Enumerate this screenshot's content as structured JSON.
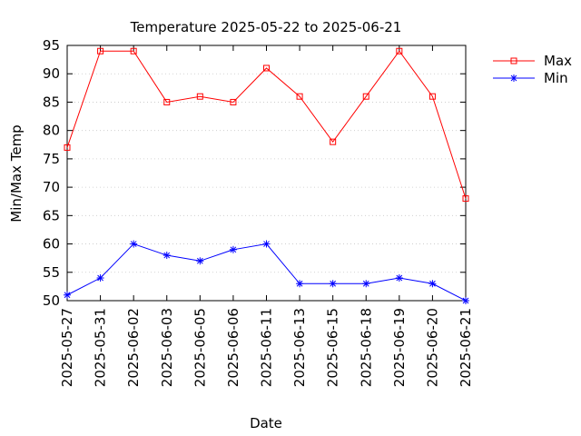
{
  "chart_data": {
    "type": "line",
    "title": "Temperature 2025-05-22 to 2025-06-21",
    "xlabel": "Date",
    "ylabel": "Min/Max Temp",
    "categories": [
      "2025-05-27",
      "2025-05-31",
      "2025-06-02",
      "2025-06-03",
      "2025-06-05",
      "2025-06-06",
      "2025-06-11",
      "2025-06-13",
      "2025-06-15",
      "2025-06-18",
      "2025-06-19",
      "2025-06-20",
      "2025-06-21"
    ],
    "ylim": [
      50,
      95
    ],
    "yticks": [
      50,
      55,
      60,
      65,
      70,
      75,
      80,
      85,
      90,
      95
    ],
    "grid": true,
    "legend": "top-right outside",
    "series": [
      {
        "name": "Max",
        "color": "#ff0000",
        "marker": "square",
        "values": [
          77,
          94,
          94,
          85,
          86,
          85,
          91,
          86,
          78,
          86,
          94,
          86,
          68
        ]
      },
      {
        "name": "Min",
        "color": "#0000ff",
        "marker": "star",
        "values": [
          51,
          54,
          60,
          58,
          57,
          59,
          60,
          53,
          53,
          53,
          54,
          53,
          50
        ]
      }
    ]
  }
}
